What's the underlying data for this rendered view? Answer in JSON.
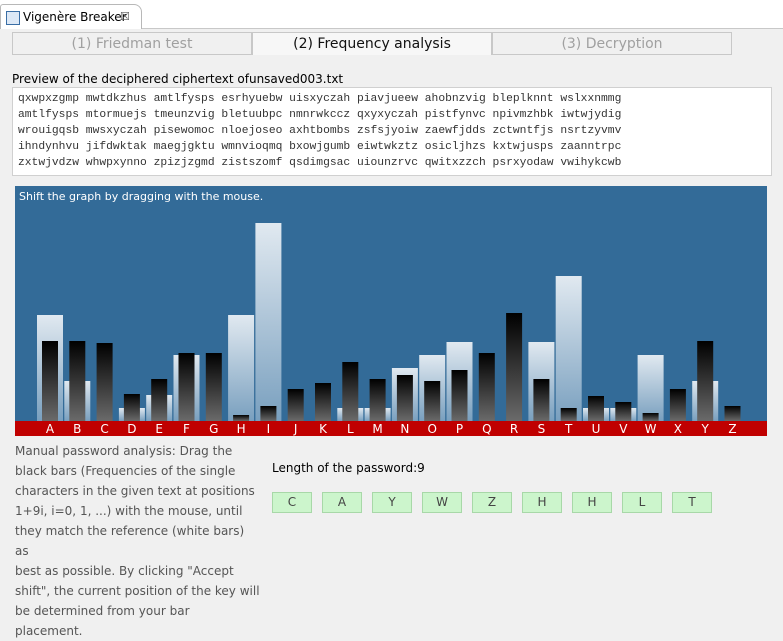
{
  "window": {
    "tab_title": "Vigenère Breaker",
    "close": "☒"
  },
  "tabs": [
    "(1) Friedman test",
    "(2) Frequency analysis",
    "(3) Decryption"
  ],
  "preview": {
    "label": "Preview of the deciphered ciphertext ofunsaved003.txt",
    "lines": [
      "qxwpxzgmp mwtdkzhus amtlfysps esrhyuebw uisxyczah piavjueew ahobnzvig bleplknnt wslxxnmmg",
      "amtlfysps mtormuejs tmeunzvig bletuubpc nmnrwkccz qxyxyczah pistfynvc npivmzhbk iwtwjydig",
      "wrouigqsb mwsxyczah pisewomoc nloejoseo axhtbombs zsfsjyoiw zaewfjdds zctwntfjs nsrtzyvmv",
      "ihndynhvu jifdwktak maegjgktu wmnvioqmq bxowjgumb eiwtwkztz osicljhzs kxtwjusps zaanntrpc",
      "zxtwjvdzw whwpxynno zpizjzgmd zistszomf qsdimgsac uiounzrvc qwitxzzch psrxyodaw vwihykcwb"
    ]
  },
  "chart_data": {
    "type": "bar",
    "hint": "Shift the graph by dragging with the mouse.",
    "categories": [
      "A",
      "B",
      "C",
      "D",
      "E",
      "F",
      "G",
      "H",
      "I",
      "J",
      "K",
      "L",
      "M",
      "N",
      "O",
      "P",
      "Q",
      "R",
      "S",
      "T",
      "U",
      "V",
      "W",
      "X",
      "Y",
      "Z"
    ],
    "ylim": [
      0,
      235
    ],
    "series": [
      {
        "color": "#e6eef6",
        "values": [
          106,
          40,
          0,
          13,
          26,
          66,
          0,
          106,
          198,
          0,
          0,
          13,
          13,
          53,
          66,
          79,
          0,
          0,
          79,
          145,
          13,
          13,
          66,
          0,
          40,
          0
        ]
      },
      {
        "color": "#000000",
        "values": [
          80,
          80,
          78,
          27,
          42,
          68,
          68,
          6,
          15,
          32,
          38,
          59,
          42,
          46,
          40,
          51,
          68,
          108,
          42,
          13,
          25,
          19,
          8,
          32,
          80,
          15
        ]
      }
    ]
  },
  "description": [
    "Manual password analysis: Drag the",
    "black bars (Frequencies of the single",
    "characters in the given text at positions",
    "1+9i, i=0, 1, ...) with the mouse, until",
    "they match the reference (white bars) as",
    "best as possible. By clicking \"Accept",
    "shift\", the current position of the key will",
    "be determined from your bar",
    "placement."
  ],
  "password": {
    "label": "Length of the password:9",
    "keys": [
      "C",
      "A",
      "Y",
      "W",
      "Z",
      "H",
      "H",
      "L",
      "T"
    ]
  }
}
